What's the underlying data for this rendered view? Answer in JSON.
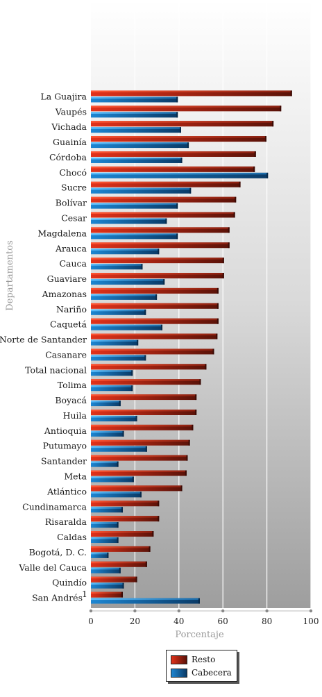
{
  "chart_data": {
    "type": "bar",
    "orientation": "horizontal",
    "xlabel": "Porcentaje",
    "ylabel": "Departamentos",
    "xlim": [
      0,
      100
    ],
    "xticks": [
      0,
      20,
      40,
      60,
      80,
      100
    ],
    "grid": true,
    "legend_position": "bottom",
    "categories": [
      "La Guajira",
      "Vaupés",
      "Vichada",
      "Guainía",
      "Córdoba",
      "Chocó",
      "Sucre",
      "Bolívar",
      "Cesar",
      "Magdalena",
      "Arauca",
      "Cauca",
      "Guaviare",
      "Amazonas",
      "Nariño",
      "Caquetá",
      "Norte de Santander",
      "Casanare",
      "Total nacional",
      "Tolima",
      "Boyacá",
      "Huila",
      "Antioquia",
      "Putumayo",
      "Santander",
      "Meta",
      "Atlántico",
      "Cundinamarca",
      "Risaralda",
      "Caldas",
      "Bogotá, D. C.",
      "Valle del Cauca",
      "Quindío",
      "San Andrés"
    ],
    "category_footnotes": {
      "San Andrés": "1"
    },
    "series": [
      {
        "name": "Resto",
        "color": "#c8321e",
        "values": [
          91.4,
          86.5,
          83.0,
          79.8,
          75.0,
          74.5,
          68.0,
          66.0,
          65.5,
          63.0,
          63.0,
          60.5,
          60.5,
          58.0,
          58.0,
          58.0,
          57.5,
          56.0,
          52.5,
          50.0,
          48.0,
          48.0,
          46.5,
          45.0,
          44.0,
          43.5,
          41.5,
          31.0,
          31.0,
          28.5,
          27.0,
          25.5,
          21.0,
          14.5
        ]
      },
      {
        "name": "Cabecera",
        "color": "#1e7fc4",
        "values": [
          39.5,
          39.5,
          41.0,
          44.5,
          41.5,
          80.5,
          45.5,
          39.5,
          34.5,
          39.5,
          31.0,
          23.5,
          33.5,
          30.0,
          25.0,
          32.5,
          21.5,
          25.0,
          19.0,
          19.0,
          13.5,
          21.0,
          15.0,
          25.5,
          12.5,
          19.5,
          23.0,
          14.5,
          12.5,
          12.5,
          8.0,
          13.5,
          15.0,
          49.5
        ]
      }
    ]
  }
}
